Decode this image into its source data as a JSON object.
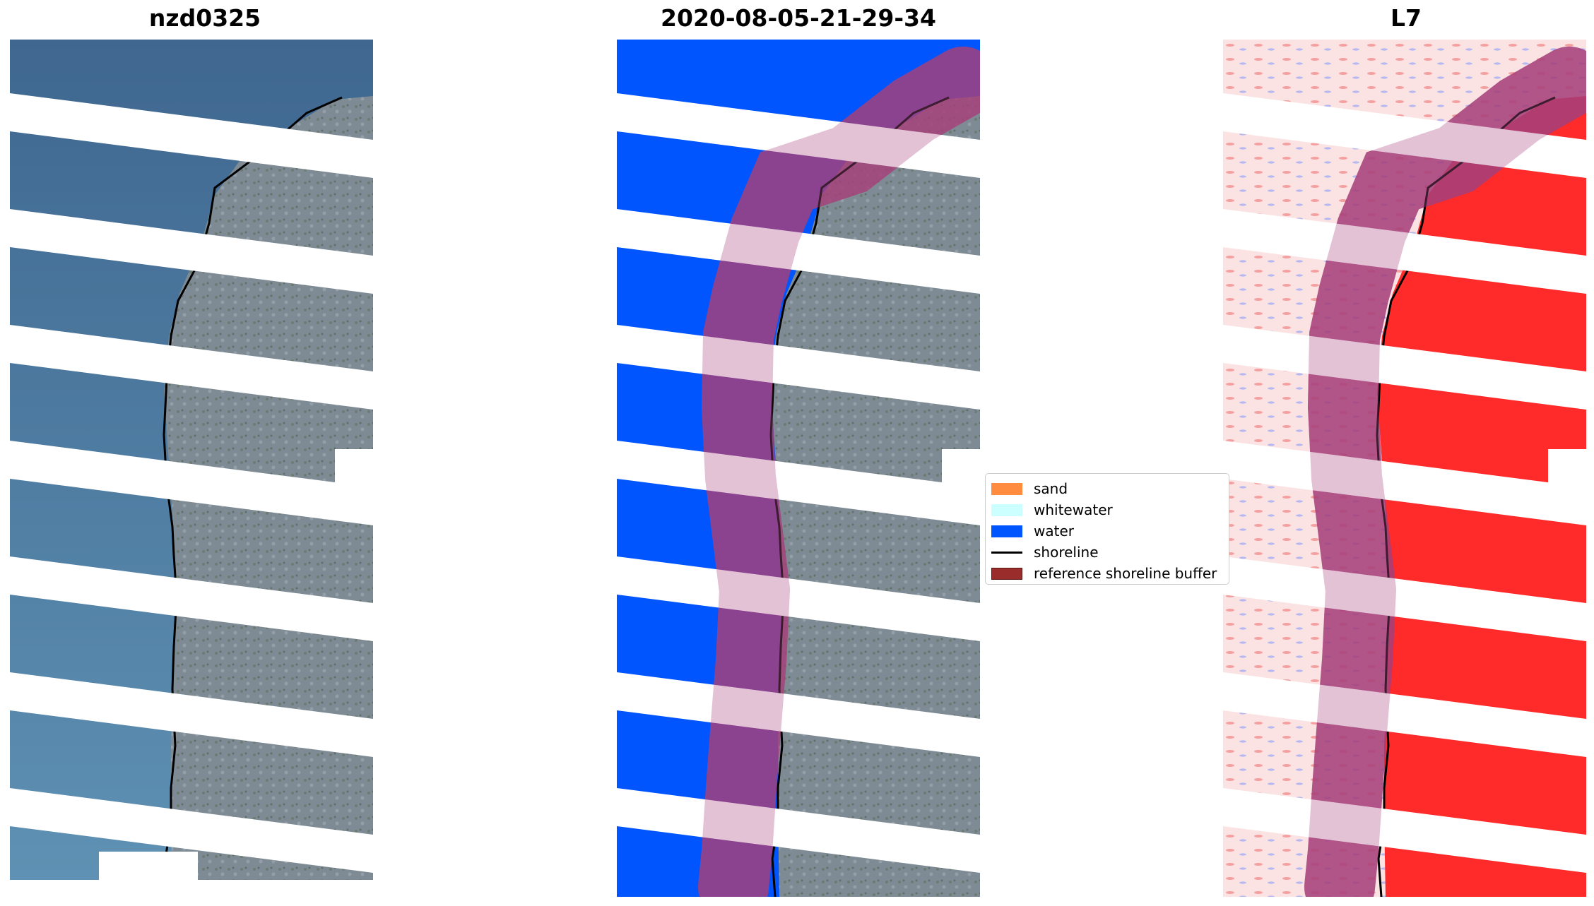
{
  "titles": {
    "left": "nzd0325",
    "center": "2020-08-05-21-29-34",
    "right": "L7"
  },
  "legend": {
    "items": [
      {
        "label": "sand",
        "color": "#ff8c3f",
        "kind": "patch"
      },
      {
        "label": "whitewater",
        "color": "#ccffff",
        "kind": "patch"
      },
      {
        "label": "water",
        "color": "#0055ff",
        "kind": "patch"
      },
      {
        "label": "shoreline",
        "color": "#000000",
        "kind": "line"
      },
      {
        "label": "reference shoreline buffer",
        "color": "#9a2c2c",
        "kind": "patch"
      }
    ]
  },
  "colors": {
    "sea": "#4f7fa8",
    "land": "#7d8a93",
    "water_class": "#0055ff",
    "buffer": "#a0356f",
    "index_land": "#ff2a2a",
    "index_water": "#fbe3e3"
  }
}
